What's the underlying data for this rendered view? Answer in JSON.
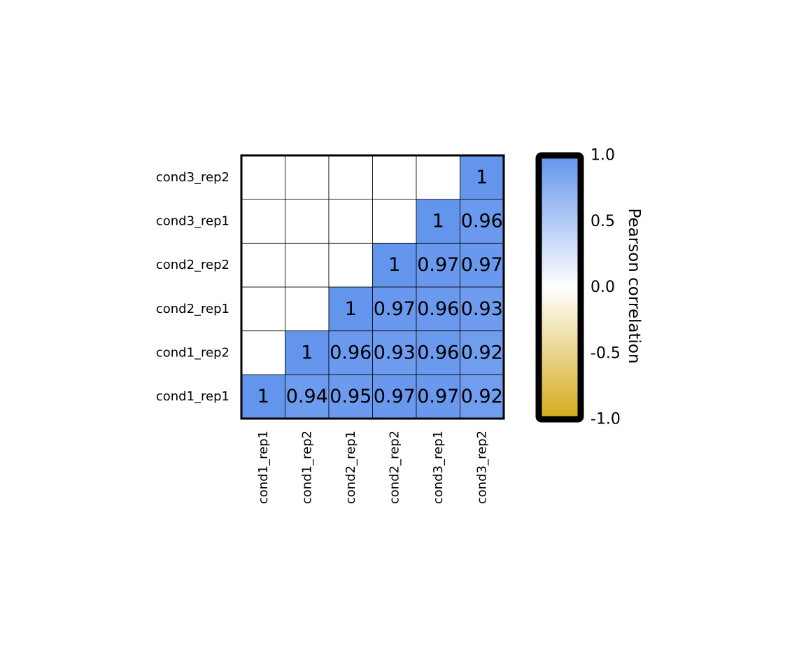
{
  "chart_data": {
    "type": "heatmap",
    "matrix_style": "lower-triangle",
    "row_labels": [
      "cond1_rep1",
      "cond1_rep2",
      "cond2_rep1",
      "cond2_rep2",
      "cond3_rep1",
      "cond3_rep2"
    ],
    "col_labels": [
      "cond1_rep1",
      "cond1_rep2",
      "cond2_rep1",
      "cond2_rep2",
      "cond3_rep1",
      "cond3_rep2"
    ],
    "values": [
      [
        1,
        0.94,
        0.95,
        0.97,
        0.97,
        0.92
      ],
      [
        null,
        1,
        0.96,
        0.93,
        0.96,
        0.92
      ],
      [
        null,
        null,
        1,
        0.97,
        0.96,
        0.93
      ],
      [
        null,
        null,
        null,
        1,
        0.97,
        0.97
      ],
      [
        null,
        null,
        null,
        null,
        1,
        0.96
      ],
      [
        null,
        null,
        null,
        null,
        null,
        1
      ]
    ],
    "cell_labels": [
      [
        "1",
        "0.94",
        "0.95",
        "0.97",
        "0.97",
        "0.92"
      ],
      [
        "",
        "1",
        "0.96",
        "0.93",
        "0.96",
        "0.92"
      ],
      [
        "",
        "",
        "1",
        "0.97",
        "0.96",
        "0.93"
      ],
      [
        "",
        "",
        "",
        "1",
        "0.97",
        "0.97"
      ],
      [
        "",
        "",
        "",
        "",
        "1",
        "0.96"
      ],
      [
        "",
        "",
        "",
        "",
        "",
        "1"
      ]
    ],
    "colorbar": {
      "title": "Pearson correlation",
      "range": [
        -1.0,
        1.0
      ],
      "ticks": [
        1.0,
        0.5,
        0.0,
        -0.5,
        -1.0
      ],
      "tick_labels": [
        "1.0",
        "0.5",
        "0.0",
        "-0.5",
        "-1.0"
      ],
      "colors": {
        "low": "#d4aa1a",
        "mid": "#ffffff",
        "high": "#6495ed"
      }
    }
  }
}
